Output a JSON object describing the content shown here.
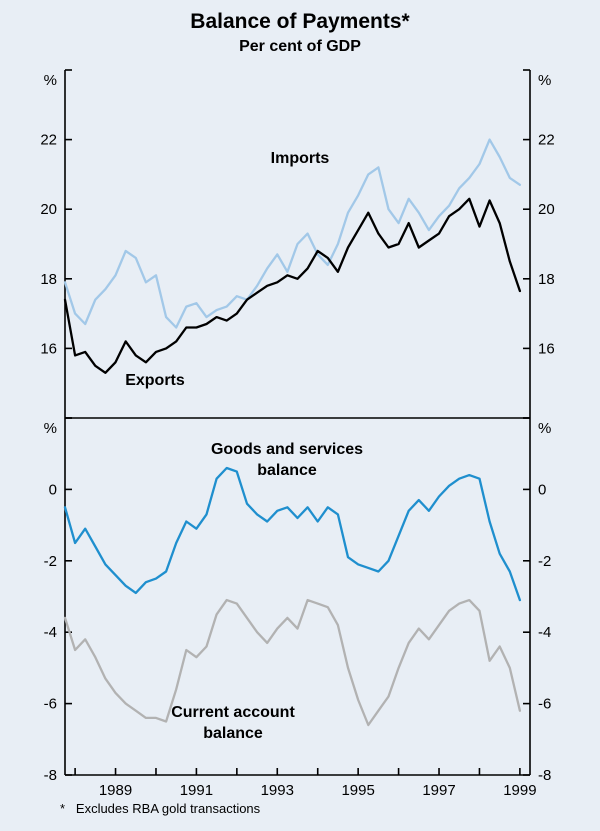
{
  "page": {
    "title": "Balance of Payments*",
    "subtitle": "Per cent of GDP",
    "footnote": "*   Excludes RBA gold transactions",
    "background": "#e8eef5"
  },
  "chart_data": {
    "type": "line",
    "title": "Balance of Payments*",
    "subtitle": "Per cent of GDP",
    "footnote": "* Excludes RBA gold transactions",
    "x_unit": "year, quarterly observations",
    "x_start": 1987.75,
    "x_step": 0.25,
    "x_axis": {
      "min": 1987.75,
      "max": 1999.25,
      "labeled_ticks": [
        1989,
        1991,
        1993,
        1995,
        1997,
        1999
      ],
      "minor_tick_every_year": true
    },
    "grid": "off",
    "legend": "inline-labels",
    "panels": [
      {
        "unit": "%",
        "ylim": [
          14,
          24
        ],
        "ytick_step": 2,
        "ytick_labels": [
          16,
          18,
          20,
          22
        ],
        "series": [
          {
            "name": "Imports",
            "color": "#a2c8e8",
            "values": [
              17.9,
              17.0,
              16.7,
              17.4,
              17.7,
              18.1,
              18.8,
              18.6,
              17.9,
              18.1,
              16.9,
              16.6,
              17.2,
              17.3,
              16.9,
              17.1,
              17.2,
              17.5,
              17.4,
              17.8,
              18.3,
              18.7,
              18.2,
              19.0,
              19.3,
              18.7,
              18.4,
              19.0,
              19.9,
              20.4,
              21.0,
              21.2,
              20.0,
              19.6,
              20.3,
              19.9,
              19.4,
              19.8,
              20.1,
              20.6,
              20.9,
              21.3,
              22.0,
              21.5,
              20.9,
              20.7
            ]
          },
          {
            "name": "Exports",
            "color": "#000000",
            "values": [
              17.4,
              15.8,
              15.9,
              15.5,
              15.3,
              15.6,
              16.2,
              15.8,
              15.6,
              15.9,
              16.0,
              16.2,
              16.6,
              16.6,
              16.7,
              16.9,
              16.8,
              17.0,
              17.4,
              17.6,
              17.8,
              17.9,
              18.1,
              18.0,
              18.3,
              18.8,
              18.6,
              18.2,
              18.9,
              19.4,
              19.9,
              19.3,
              18.9,
              19.0,
              19.6,
              18.9,
              19.1,
              19.3,
              19.8,
              20.0,
              20.3,
              19.5,
              20.25,
              19.6,
              18.5,
              17.65
            ]
          }
        ],
        "annotations": [
          {
            "text": "Imports"
          },
          {
            "text": "Exports"
          }
        ]
      },
      {
        "unit": "%",
        "ylim": [
          -8,
          2
        ],
        "ytick_step": 2,
        "ytick_labels": [
          0,
          -2,
          -4,
          -6,
          -8
        ],
        "series": [
          {
            "name": "Goods and services balance",
            "color": "#1f8fce",
            "values": [
              -0.5,
              -1.5,
              -1.1,
              -1.6,
              -2.1,
              -2.4,
              -2.7,
              -2.9,
              -2.6,
              -2.5,
              -2.3,
              -1.5,
              -0.9,
              -1.1,
              -0.7,
              0.3,
              0.6,
              0.5,
              -0.4,
              -0.7,
              -0.9,
              -0.6,
              -0.5,
              -0.8,
              -0.5,
              -0.9,
              -0.5,
              -0.7,
              -1.9,
              -2.1,
              -2.2,
              -2.3,
              -2.0,
              -1.3,
              -0.6,
              -0.3,
              -0.6,
              -0.2,
              0.1,
              0.3,
              0.4,
              0.3,
              -0.9,
              -1.8,
              -2.3,
              -3.1
            ]
          },
          {
            "name": "Current account balance",
            "color": "#b2b2b2",
            "values": [
              -3.6,
              -4.5,
              -4.2,
              -4.7,
              -5.3,
              -5.7,
              -6.0,
              -6.2,
              -6.4,
              -6.4,
              -6.5,
              -5.6,
              -4.5,
              -4.7,
              -4.4,
              -3.5,
              -3.1,
              -3.2,
              -3.6,
              -4.0,
              -4.3,
              -3.9,
              -3.6,
              -3.9,
              -3.1,
              -3.2,
              -3.3,
              -3.8,
              -5.0,
              -5.9,
              -6.6,
              -6.2,
              -5.8,
              -5.0,
              -4.3,
              -3.9,
              -4.2,
              -3.8,
              -3.4,
              -3.2,
              -3.1,
              -3.4,
              -4.8,
              -4.4,
              -5.0,
              -6.2
            ]
          }
        ],
        "annotations": [
          {
            "text": "Goods and services\nbalance"
          },
          {
            "text": "Current account\nbalance"
          }
        ]
      }
    ]
  }
}
